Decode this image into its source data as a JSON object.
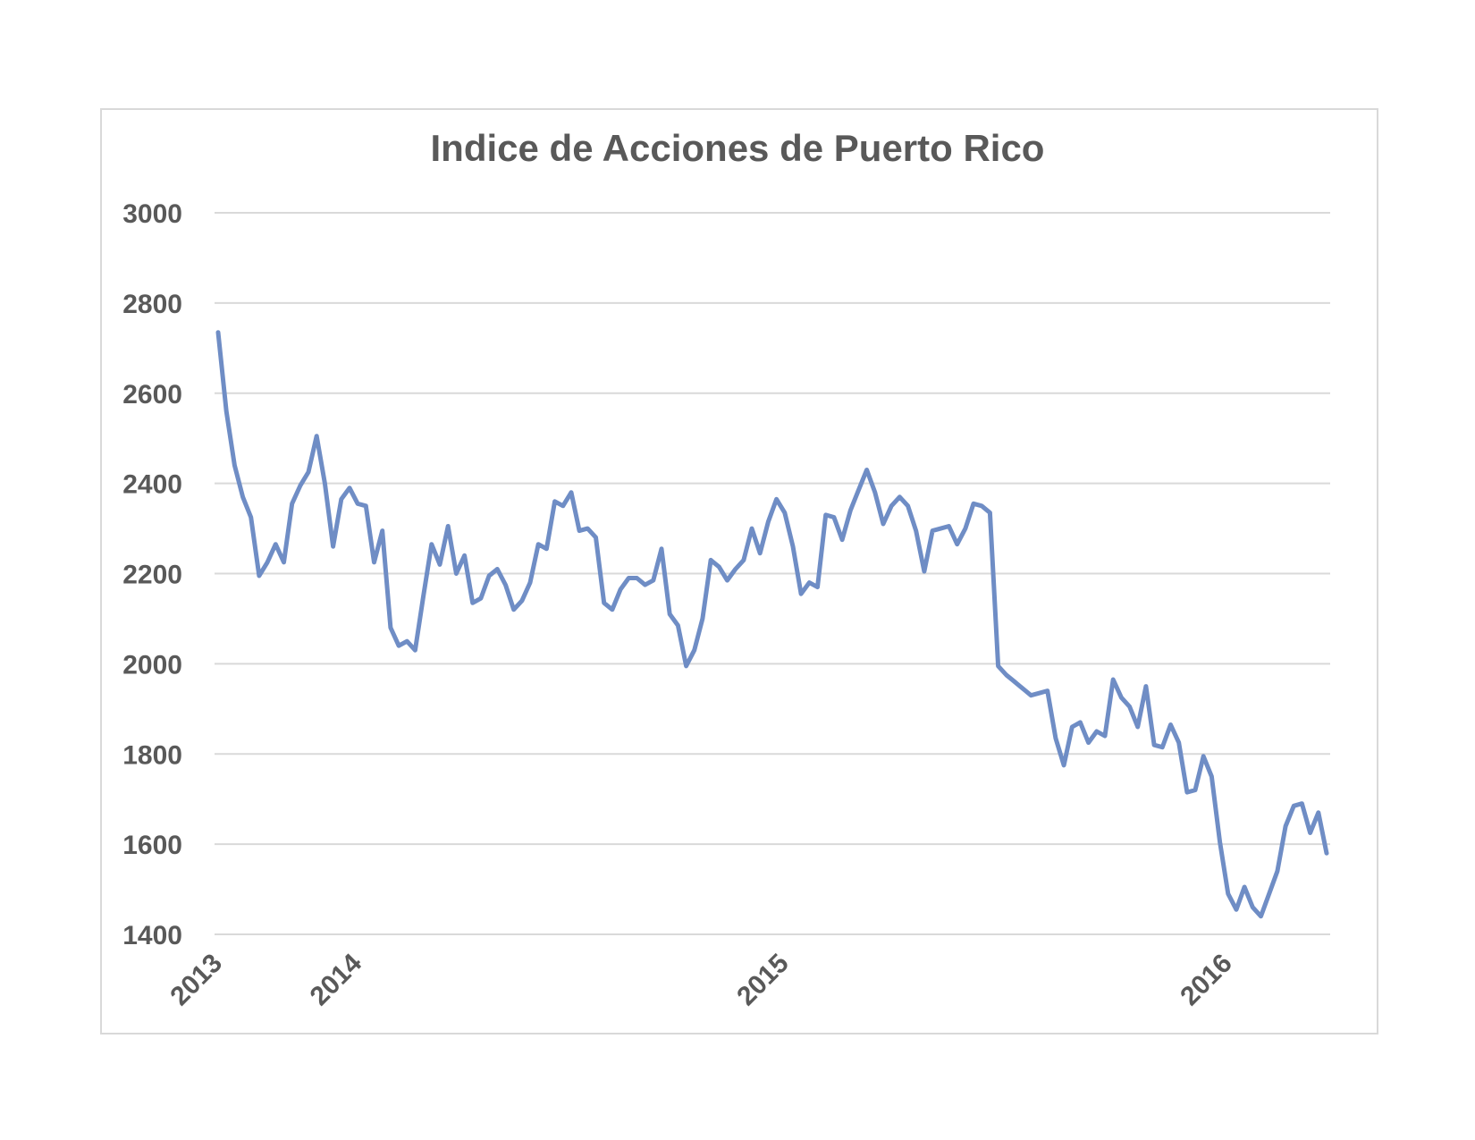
{
  "chart_data": {
    "type": "line",
    "title": "Indice de Acciones de Puerto Rico",
    "xlabel": "",
    "ylabel": "",
    "ylim": [
      1400,
      3000
    ],
    "yticks": [
      "3000",
      "2800",
      "2600",
      "2400",
      "2200",
      "2000",
      "1800",
      "1600",
      "1400"
    ],
    "xticks": [
      {
        "label": "2013",
        "index": 0
      },
      {
        "label": "2014",
        "index": 17
      },
      {
        "label": "2015",
        "index": 69
      },
      {
        "label": "2016",
        "index": 123
      }
    ],
    "grid": true,
    "legend": "none",
    "series_color": "#6f8dc5",
    "series": [
      {
        "values": [
          2735,
          2560,
          2440,
          2370,
          2325,
          2195,
          2225,
          2265,
          2225,
          2355,
          2395,
          2425,
          2505,
          2400,
          2260,
          2365,
          2390,
          2355,
          2350,
          2225,
          2295,
          2080,
          2040,
          2050,
          2030,
          2150,
          2265,
          2220,
          2305,
          2200,
          2240,
          2135,
          2145,
          2195,
          2210,
          2175,
          2120,
          2140,
          2180,
          2265,
          2255,
          2360,
          2350,
          2380,
          2295,
          2300,
          2280,
          2135,
          2120,
          2165,
          2190,
          2190,
          2175,
          2185,
          2255,
          2110,
          2085,
          1995,
          2030,
          2100,
          2230,
          2215,
          2185,
          2210,
          2230,
          2300,
          2245,
          2315,
          2365,
          2335,
          2260,
          2155,
          2180,
          2170,
          2330,
          2325,
          2275,
          2340,
          2385,
          2430,
          2380,
          2310,
          2350,
          2370,
          2350,
          2295,
          2205,
          2295,
          2300,
          2305,
          2265,
          2300,
          2355,
          2350,
          2335,
          1995,
          1975,
          1960,
          1945,
          1930,
          1935,
          1940,
          1835,
          1775,
          1860,
          1870,
          1825,
          1850,
          1840,
          1965,
          1925,
          1905,
          1860,
          1950,
          1820,
          1815,
          1865,
          1825,
          1715,
          1720,
          1795,
          1750,
          1605,
          1490,
          1455,
          1505,
          1460,
          1440,
          1490,
          1540,
          1640,
          1685,
          1690,
          1625,
          1670,
          1580
        ]
      }
    ]
  }
}
